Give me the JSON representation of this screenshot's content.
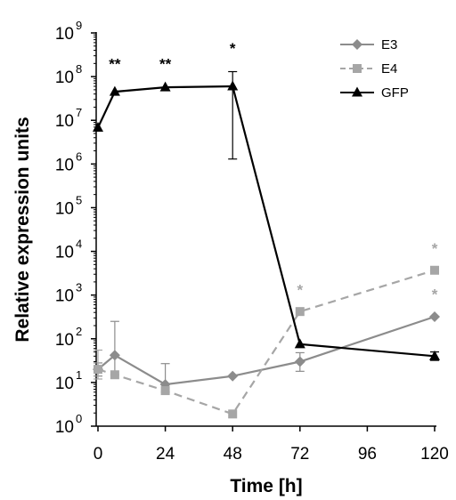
{
  "chart_data": {
    "type": "line",
    "xlabel": "Time [h]",
    "ylabel": "Relative expression units",
    "y_scale": "log",
    "xlim": [
      0,
      120
    ],
    "ylim_exponents": [
      0,
      9
    ],
    "y_base_label": "10",
    "x_ticks": [
      "0",
      "24",
      "48",
      "72",
      "96",
      "120"
    ],
    "x_tick_values": [
      0,
      24,
      48,
      72,
      96,
      120
    ],
    "y_tick_exponents": [
      "0",
      "1",
      "2",
      "3",
      "4",
      "5",
      "6",
      "7",
      "8",
      "9"
    ],
    "legend_position": "top-right",
    "series": [
      {
        "name": "E3",
        "color": "#8c8c8c",
        "dash": "solid",
        "marker": "diamond",
        "points": [
          {
            "x": 0,
            "y": 20,
            "err_low": 14,
            "err_high": 28
          },
          {
            "x": 6,
            "y": 42,
            "err_low": 15,
            "err_high": 250
          },
          {
            "x": 24,
            "y": 9,
            "err_low": 6,
            "err_high": 27
          },
          {
            "x": 48,
            "y": 14
          },
          {
            "x": 72,
            "y": 30,
            "err_low": 18,
            "err_high": 48
          },
          {
            "x": 120,
            "y": 320
          }
        ]
      },
      {
        "name": "E4",
        "color": "#a6a6a6",
        "dash": "dashed",
        "marker": "square",
        "points": [
          {
            "x": 0,
            "y": 20,
            "err_low": 12,
            "err_high": 55
          },
          {
            "x": 6,
            "y": 15
          },
          {
            "x": 24,
            "y": 6.5
          },
          {
            "x": 48,
            "y": 1.9
          },
          {
            "x": 72,
            "y": 420
          },
          {
            "x": 120,
            "y": 3700
          }
        ]
      },
      {
        "name": "GFP",
        "color": "#000000",
        "dash": "solid",
        "marker": "triangle",
        "points": [
          {
            "x": 0,
            "y": 6800000
          },
          {
            "x": 6,
            "y": 45000000
          },
          {
            "x": 24,
            "y": 57000000
          },
          {
            "x": 48,
            "y": 60000000,
            "err_low": 1300000,
            "err_high": 130000000
          },
          {
            "x": 72,
            "y": 75
          },
          {
            "x": 120,
            "y": 40,
            "err_low": 32,
            "err_high": 50
          }
        ]
      }
    ],
    "annotations": [
      {
        "text": "**",
        "x": 6,
        "y": 150000000,
        "color": "#000000"
      },
      {
        "text": "**",
        "x": 24,
        "y": 150000000,
        "color": "#000000"
      },
      {
        "text": "*",
        "x": 48,
        "y": 340000000,
        "color": "#000000"
      },
      {
        "text": "*",
        "x": 72,
        "y": 1000,
        "color": "#a6a6a6"
      },
      {
        "text": "*",
        "x": 120,
        "y": 9000,
        "color": "#a6a6a6"
      },
      {
        "text": "*",
        "x": 120,
        "y": 800,
        "color": "#a6a6a6"
      }
    ]
  }
}
